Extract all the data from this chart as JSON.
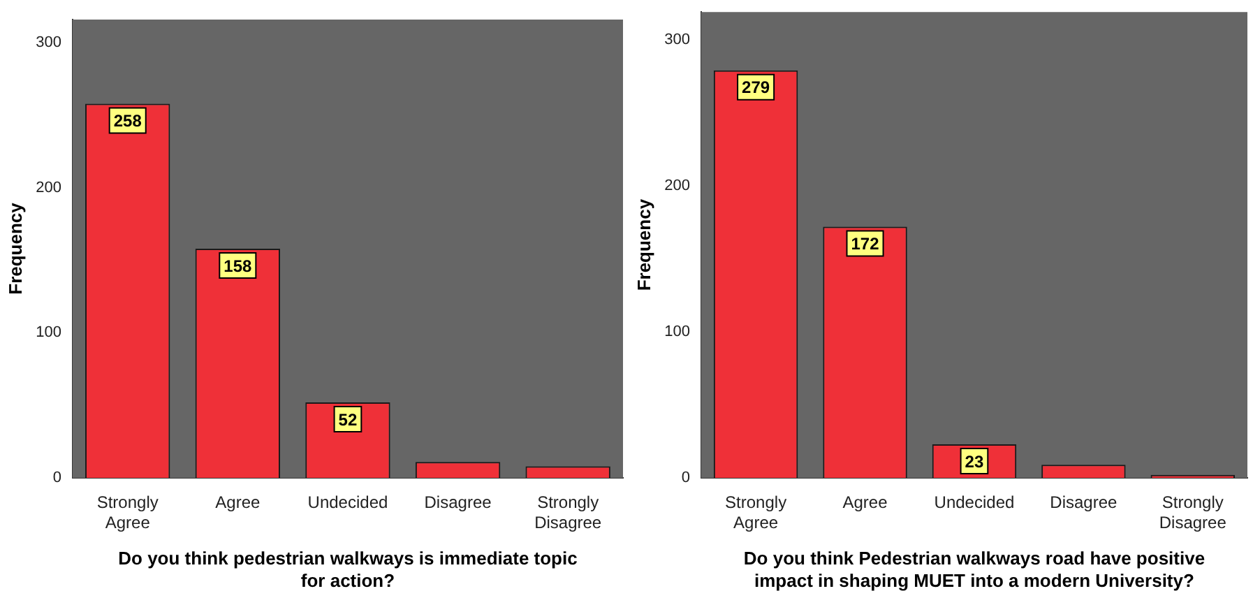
{
  "chart_data": [
    {
      "type": "bar",
      "xlabel": "Do you think pedestrian walkways is immediate topic for action?",
      "ylabel": "Frequency",
      "categories": [
        "Strongly Agree",
        "Agree",
        "Undecided",
        "Disagree",
        "Strongly Disagree"
      ],
      "values": [
        258,
        158,
        52,
        11,
        8
      ],
      "value_labels": [
        "258",
        "158",
        "52",
        null,
        null
      ],
      "color": "#ef3038",
      "ylim": [
        0,
        316
      ],
      "yticks": [
        0,
        100,
        200,
        300
      ]
    },
    {
      "type": "bar",
      "xlabel": "Do you think Pedestrian walkways road have positive impact in shaping MUET into a modern University?",
      "ylabel": "Frequency",
      "categories": [
        "Strongly Agree",
        "Agree",
        "Undecided",
        "Disagree",
        "Strongly Disagree"
      ],
      "values": [
        279,
        172,
        23,
        9,
        2
      ],
      "value_labels": [
        "279",
        "172",
        "23",
        null,
        null
      ],
      "color": "#ef3038",
      "ylim": [
        0,
        319
      ],
      "yticks": [
        0,
        100,
        200,
        300
      ]
    }
  ]
}
